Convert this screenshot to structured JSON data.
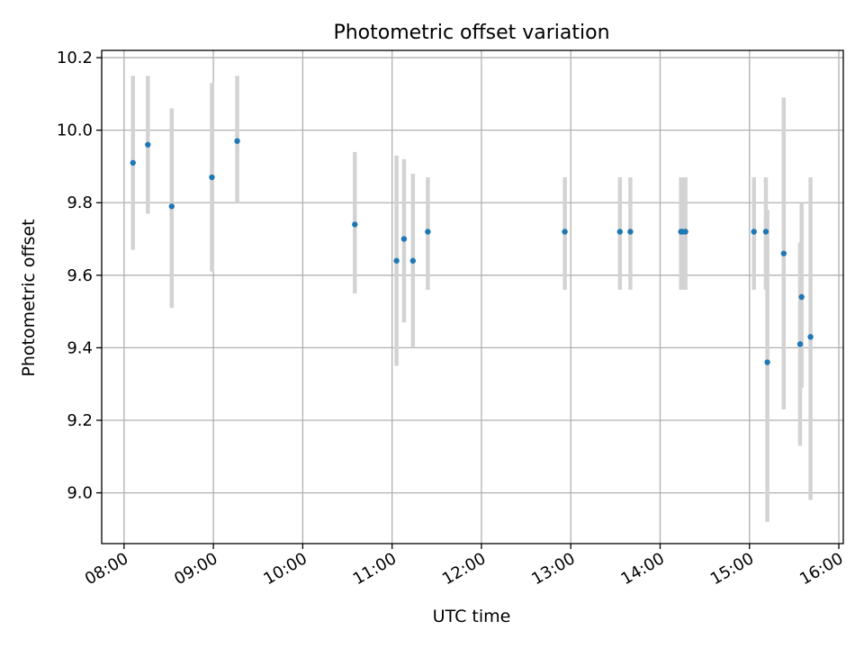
{
  "chart_data": {
    "type": "scatter",
    "title": "Photometric offset variation",
    "xlabel": "UTC time",
    "ylabel": "Photometric offset",
    "xlim": [
      "07:45",
      "16:03"
    ],
    "ylim": [
      8.86,
      10.22
    ],
    "x_ticks": [
      "08:00",
      "09:00",
      "10:00",
      "11:00",
      "12:00",
      "13:00",
      "14:00",
      "15:00",
      "16:00"
    ],
    "y_ticks": [
      "9.0",
      "9.2",
      "9.4",
      "9.6",
      "9.8",
      "10.0",
      "10.2"
    ],
    "grid": true,
    "marker_color": "#1f77b4",
    "errorbar_color": "#d3d3d3",
    "points": [
      {
        "time": "08:06",
        "y": 9.91,
        "ylow": 9.67,
        "yhigh": 10.15
      },
      {
        "time": "08:16",
        "y": 9.96,
        "ylow": 9.77,
        "yhigh": 10.15
      },
      {
        "time": "08:32",
        "y": 9.79,
        "ylow": 9.51,
        "yhigh": 10.06
      },
      {
        "time": "08:59",
        "y": 9.87,
        "ylow": 9.61,
        "yhigh": 10.13
      },
      {
        "time": "09:16",
        "y": 9.97,
        "ylow": 9.8,
        "yhigh": 10.15
      },
      {
        "time": "10:35",
        "y": 9.74,
        "ylow": 9.55,
        "yhigh": 9.94
      },
      {
        "time": "11:03",
        "y": 9.64,
        "ylow": 9.35,
        "yhigh": 9.93
      },
      {
        "time": "11:08",
        "y": 9.7,
        "ylow": 9.47,
        "yhigh": 9.92
      },
      {
        "time": "11:14",
        "y": 9.64,
        "ylow": 9.4,
        "yhigh": 9.88
      },
      {
        "time": "11:24",
        "y": 9.72,
        "ylow": 9.56,
        "yhigh": 9.87
      },
      {
        "time": "12:56",
        "y": 9.72,
        "ylow": 9.56,
        "yhigh": 9.87
      },
      {
        "time": "13:33",
        "y": 9.72,
        "ylow": 9.56,
        "yhigh": 9.87
      },
      {
        "time": "13:40",
        "y": 9.72,
        "ylow": 9.56,
        "yhigh": 9.87
      },
      {
        "time": "14:14",
        "y": 9.72,
        "ylow": 9.56,
        "yhigh": 9.87
      },
      {
        "time": "14:15",
        "y": 9.72,
        "ylow": 9.56,
        "yhigh": 9.87
      },
      {
        "time": "14:17",
        "y": 9.72,
        "ylow": 9.56,
        "yhigh": 9.87
      },
      {
        "time": "15:03",
        "y": 9.72,
        "ylow": 9.56,
        "yhigh": 9.87
      },
      {
        "time": "15:11",
        "y": 9.72,
        "ylow": 9.56,
        "yhigh": 9.87
      },
      {
        "time": "15:12",
        "y": 9.36,
        "ylow": 8.92,
        "yhigh": 9.78
      },
      {
        "time": "15:23",
        "y": 9.66,
        "ylow": 9.23,
        "yhigh": 10.09
      },
      {
        "time": "15:34",
        "y": 9.41,
        "ylow": 9.13,
        "yhigh": 9.69
      },
      {
        "time": "15:35",
        "y": 9.54,
        "ylow": 9.29,
        "yhigh": 9.8
      },
      {
        "time": "15:41",
        "y": 9.43,
        "ylow": 8.98,
        "yhigh": 9.87
      }
    ]
  }
}
